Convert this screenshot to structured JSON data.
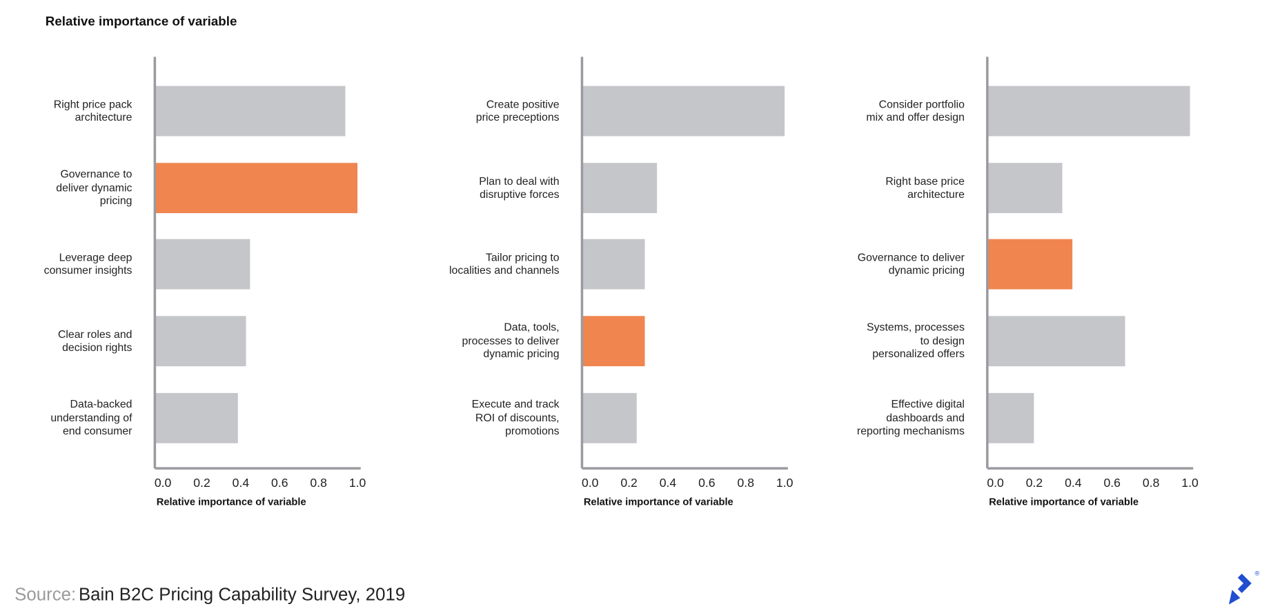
{
  "title": "Relative importance of variable",
  "source": {
    "label": "Source:",
    "text": "Bain B2C Pricing Capability Survey, 2019"
  },
  "chart_data": [
    {
      "type": "bar",
      "orientation": "horizontal",
      "categories": [
        "Right price pack\narchitecture",
        "Governance to\ndeliver dynamic\npricing",
        "Leverage deep\nconsumer insights",
        "Clear roles and\ndecision rights",
        "Data-backed\nunderstanding of\nend consumer"
      ],
      "values": [
        0.94,
        1.0,
        0.47,
        0.45,
        0.41
      ],
      "colors": [
        "#c5c6c9",
        "#f08550",
        "#c5c6c9",
        "#c5c6c9",
        "#c5c6c9"
      ],
      "xlim": [
        0,
        1.0
      ],
      "xticks": [
        {
          "value": 0,
          "label": "0.0"
        },
        0.2,
        0.4,
        0.6,
        0.8,
        {
          "value": 1,
          "label": "1.0"
        }
      ],
      "xlabel": "Relative importance of variable"
    },
    {
      "type": "bar",
      "orientation": "horizontal",
      "categories": [
        "Create positive\nprice preceptions",
        "Plan to deal with\ndisruptive forces",
        "Tailor pricing to\nlocalities and channels",
        "Data, tools,\nprocesses to deliver\ndynamic pricing",
        "Execute and track\nROI of discounts,\npromotions"
      ],
      "values": [
        1.0,
        0.37,
        0.31,
        0.31,
        0.27
      ],
      "colors": [
        "#c5c6c9",
        "#c5c6c9",
        "#c5c6c9",
        "#f08550",
        "#c5c6c9"
      ],
      "xlim": [
        0,
        1.0
      ],
      "xticks": [
        {
          "value": 0,
          "label": "0.0"
        },
        0.2,
        0.4,
        0.6,
        0.8,
        {
          "value": 1,
          "label": "1.0"
        }
      ],
      "xlabel": "Relative importance of variable"
    },
    {
      "type": "bar",
      "orientation": "horizontal",
      "categories": [
        "Consider portfolio\nmix and offer design",
        "Right base price\narchitecture",
        "Governance to deliver\ndynamic pricing",
        "Systems, processes\nto design\npersonalized offers",
        "Effective digital\ndashboards and\nreporting mechanisms"
      ],
      "values": [
        1.0,
        0.37,
        0.42,
        0.68,
        0.23
      ],
      "colors": [
        "#c5c6c9",
        "#c5c6c9",
        "#f08550",
        "#c5c6c9",
        "#c5c6c9"
      ],
      "xlim": [
        0,
        1.0
      ],
      "xticks": [
        {
          "value": 0,
          "label": "0.0"
        },
        0.2,
        0.4,
        0.6,
        0.8,
        {
          "value": 1,
          "label": "1.0"
        }
      ],
      "xlabel": "Relative importance of variable"
    }
  ]
}
